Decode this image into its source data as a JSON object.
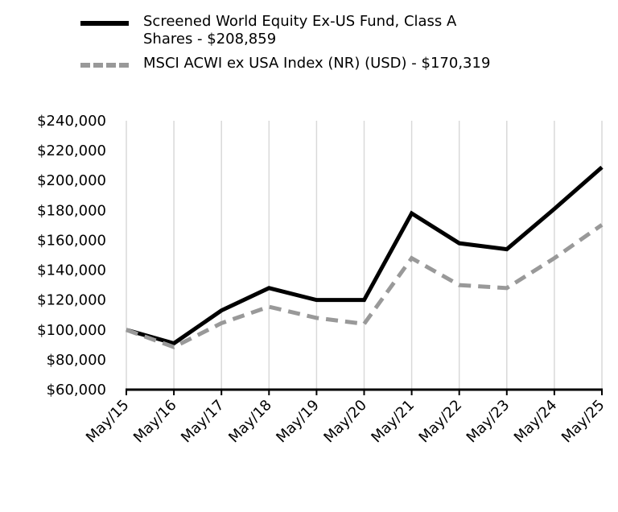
{
  "chart_data": {
    "type": "line",
    "x": [
      "May/15",
      "May/16",
      "May/17",
      "May/18",
      "May/19",
      "May/20",
      "May/21",
      "May/22",
      "May/23",
      "May/24",
      "May/25"
    ],
    "series": [
      {
        "name": "Screened World Equity Ex-US Fund, Class A Shares - $208,859",
        "color": "#000000",
        "style": "solid",
        "values": [
          100000,
          91000,
          113000,
          128000,
          120000,
          120000,
          178000,
          158000,
          154000,
          181000,
          208859
        ]
      },
      {
        "name": "MSCI ACWI ex USA Index (NR) (USD) - $170,319",
        "color": "#999999",
        "style": "dashed",
        "values": [
          100000,
          88500,
          104500,
          115500,
          108000,
          104000,
          148000,
          130000,
          128000,
          148000,
          170319
        ]
      }
    ],
    "yticks": [
      "$60,000",
      "$80,000",
      "$100,000",
      "$120,000",
      "$140,000",
      "$160,000",
      "$180,000",
      "$200,000",
      "$220,000",
      "$240,000"
    ],
    "ylim": [
      60000,
      240000
    ],
    "legend_position": "top",
    "grid": "vertical"
  }
}
